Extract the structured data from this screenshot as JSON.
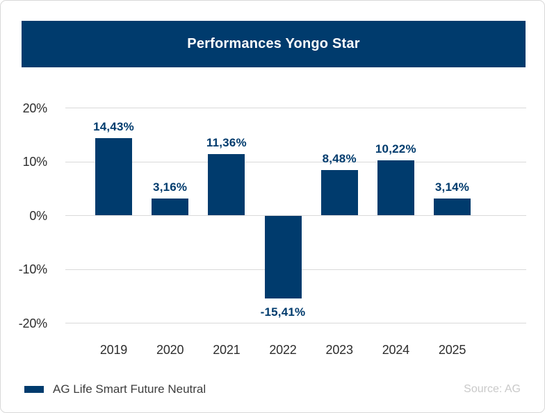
{
  "header": {
    "title": "Performances Yongo Star"
  },
  "legend": {
    "label": "AG Life Smart Future Neutral"
  },
  "source": "Source: AG",
  "colors": {
    "navy": "#003b6d",
    "grid": "#d9d9d9",
    "axis_text": "#2d2d2d",
    "legend_text": "#3d3d3d",
    "source_text": "#c9c9c9",
    "card_border": "#d8d8d8",
    "title_text": "#ffffff"
  },
  "chart_data": {
    "type": "bar",
    "title": "Performances Yongo Star",
    "categories": [
      "2019",
      "2020",
      "2021",
      "2022",
      "2023",
      "2024",
      "2025"
    ],
    "series": [
      {
        "name": "AG Life Smart Future Neutral",
        "values": [
          14.43,
          3.16,
          11.36,
          -15.41,
          8.48,
          10.22,
          3.14
        ]
      }
    ],
    "value_labels": [
      "14,43%",
      "3,16%",
      "11,36%",
      "-15,41%",
      "8,48%",
      "10,22%",
      "3,14%"
    ],
    "xlabel": "",
    "ylabel": "",
    "ylim": [
      -20,
      20
    ],
    "yticks": [
      20,
      10,
      0,
      -10,
      -20
    ],
    "ytick_labels": [
      "20%",
      "10%",
      "0%",
      "-10%",
      "-20%"
    ],
    "grid": true,
    "bar_color": "#003b6d",
    "legend_position": "bottom-left",
    "source": "Source: AG"
  }
}
